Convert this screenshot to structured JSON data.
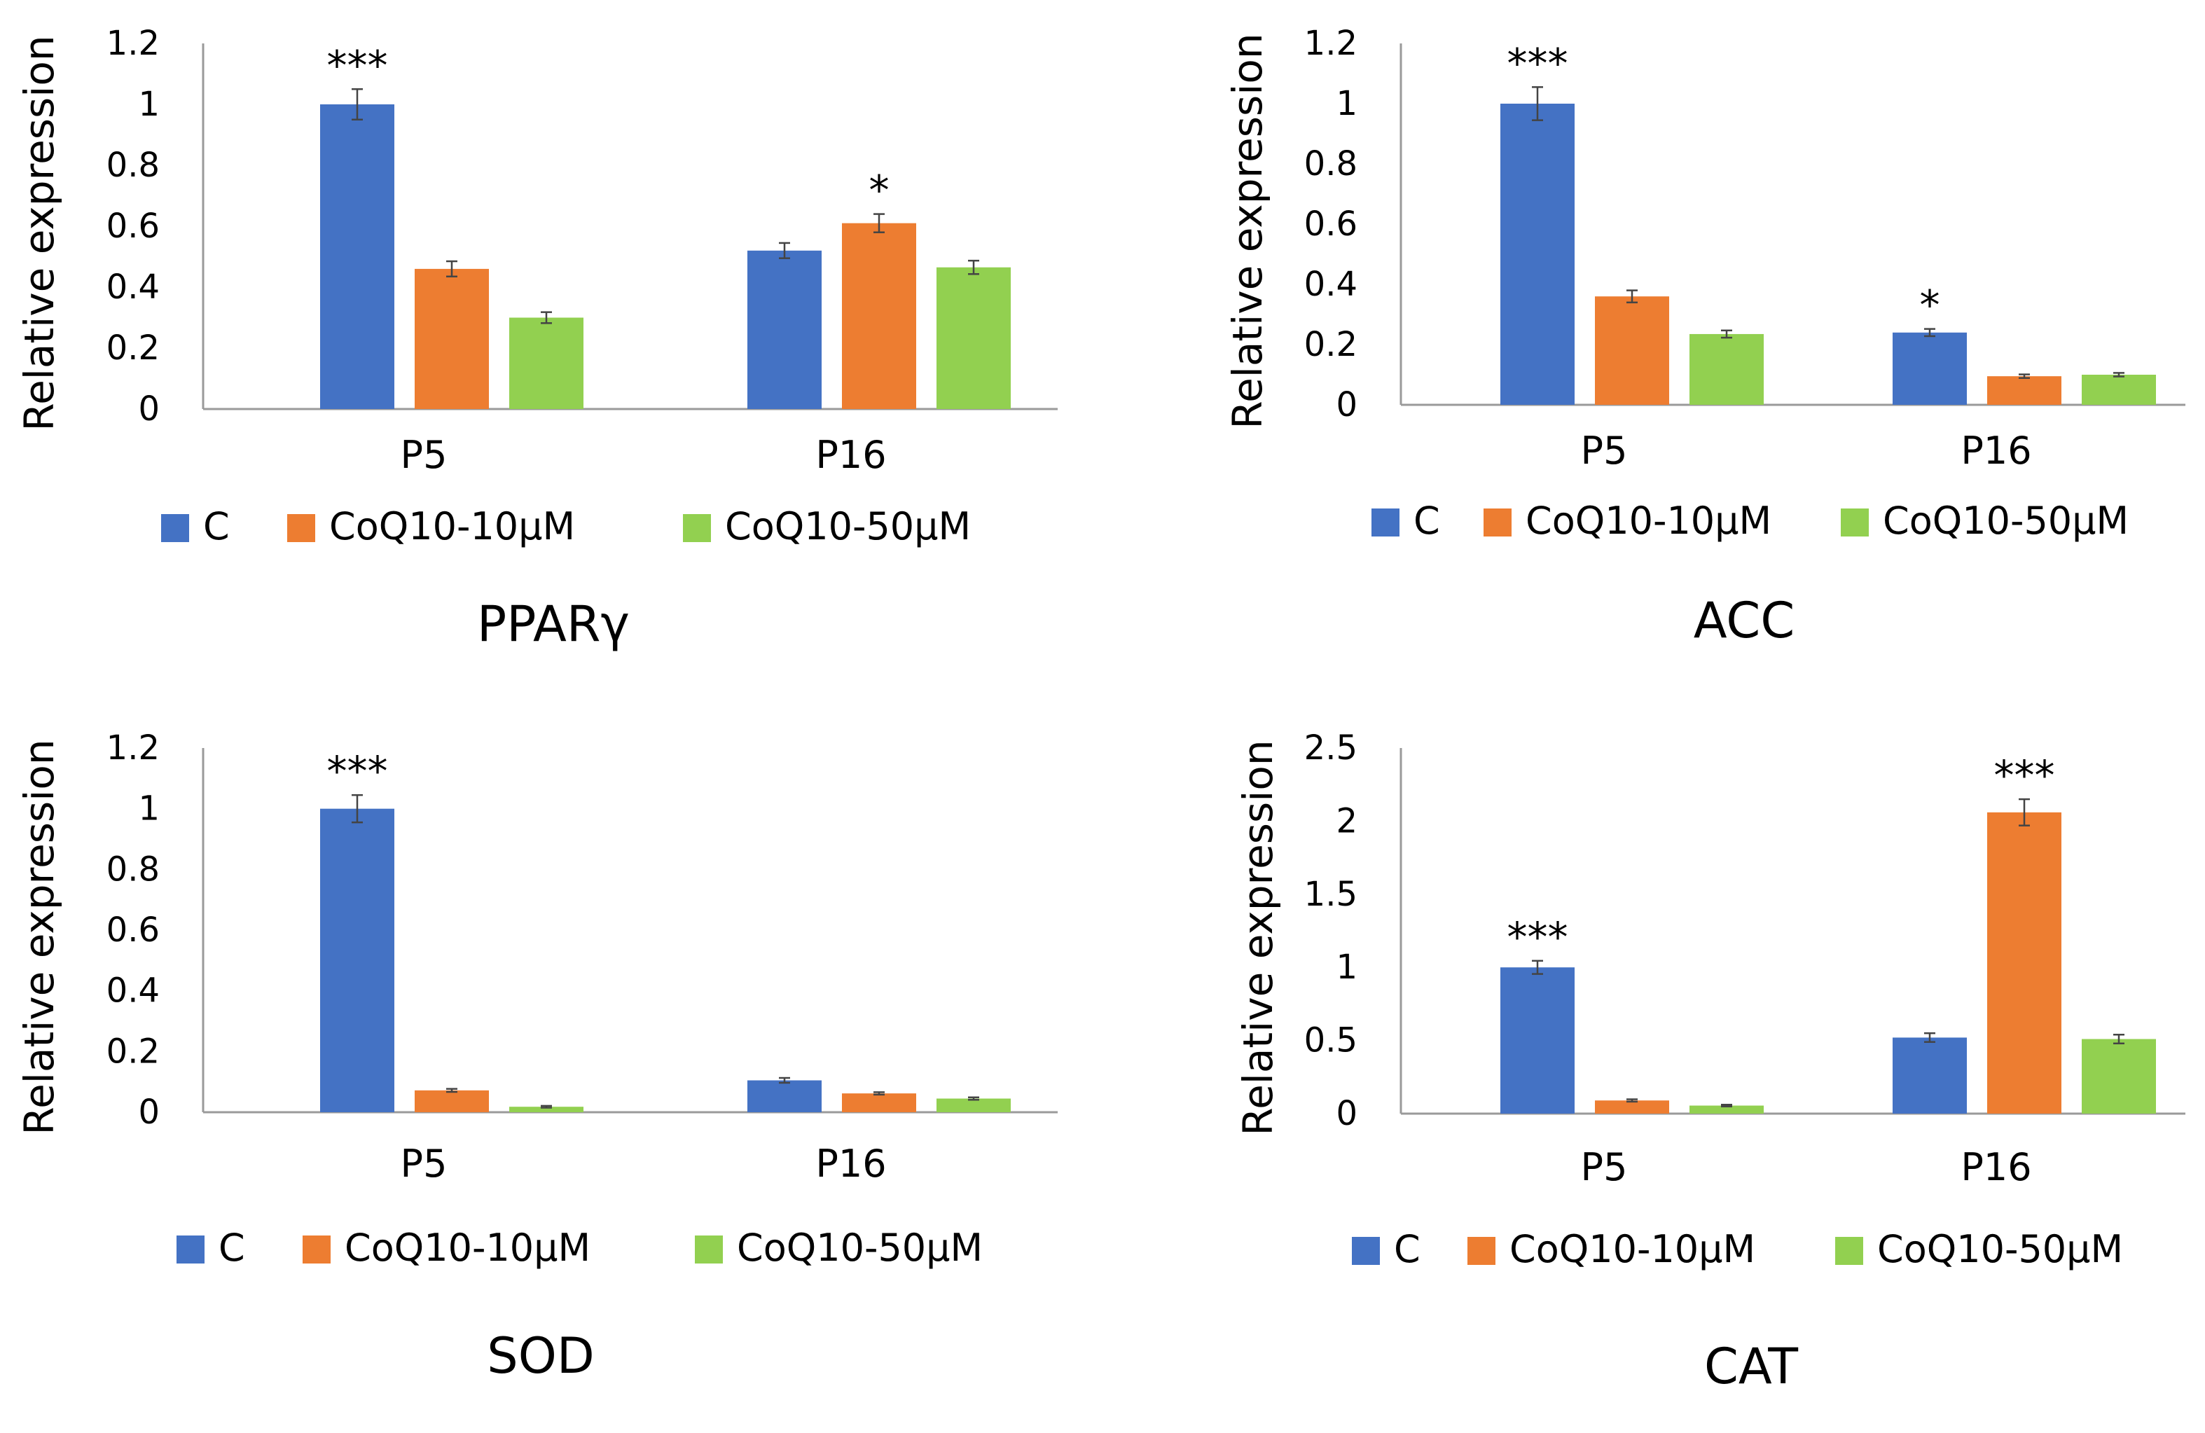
{
  "colors": {
    "C": "#4472C4",
    "CoQ10-10uM": "#ED7D31",
    "CoQ10-50uM": "#92D050",
    "axis": "#9a9a9a",
    "text": "#000000"
  },
  "chart_data": [
    {
      "type": "bar",
      "title": "PPARγ",
      "ylabel": "Relative expression",
      "xlabel": "",
      "categories": [
        "P5",
        "P16"
      ],
      "ylim": [
        0,
        1.2
      ],
      "yticks": [
        "0",
        "0.2",
        "0.4",
        "0.6",
        "0.8",
        "1",
        "1.2"
      ],
      "ytick_values": [
        0,
        0.2,
        0.4,
        0.6,
        0.8,
        1,
        1.2
      ],
      "legend_position": "bottom",
      "series": [
        {
          "name": "C",
          "values": [
            1.0,
            0.52
          ],
          "errors": [
            0.05,
            0.025
          ]
        },
        {
          "name": "CoQ10-10μM",
          "values": [
            0.46,
            0.61
          ],
          "errors": [
            0.025,
            0.03
          ]
        },
        {
          "name": "CoQ10-50μM",
          "values": [
            0.3,
            0.465
          ],
          "errors": [
            0.018,
            0.022
          ]
        }
      ],
      "annotations": [
        {
          "series": 0,
          "category": 0,
          "text": "***"
        },
        {
          "series": 1,
          "category": 1,
          "text": "*"
        }
      ]
    },
    {
      "type": "bar",
      "title": "ACC",
      "ylabel": "Relative expression",
      "xlabel": "",
      "categories": [
        "P5",
        "P16"
      ],
      "ylim": [
        0,
        1.2
      ],
      "yticks": [
        "0",
        "0.2",
        "0.4",
        "0.6",
        "0.8",
        "1",
        "1.2"
      ],
      "ytick_values": [
        0,
        0.2,
        0.4,
        0.6,
        0.8,
        1,
        1.2
      ],
      "legend_position": "bottom",
      "series": [
        {
          "name": "C",
          "values": [
            1.0,
            0.24
          ],
          "errors": [
            0.055,
            0.012
          ]
        },
        {
          "name": "CoQ10-10μM",
          "values": [
            0.36,
            0.095
          ],
          "errors": [
            0.02,
            0.006
          ]
        },
        {
          "name": "CoQ10-50μM",
          "values": [
            0.235,
            0.1
          ],
          "errors": [
            0.012,
            0.006
          ]
        }
      ],
      "annotations": [
        {
          "series": 0,
          "category": 0,
          "text": "***"
        },
        {
          "series": 0,
          "category": 1,
          "text": "*"
        }
      ]
    },
    {
      "type": "bar",
      "title": "SOD",
      "ylabel": "Relative expression",
      "xlabel": "",
      "categories": [
        "P5",
        "P16"
      ],
      "ylim": [
        0,
        1.2
      ],
      "yticks": [
        "0",
        "0.2",
        "0.4",
        "0.6",
        "0.8",
        "1",
        "1.2"
      ],
      "ytick_values": [
        0,
        0.2,
        0.4,
        0.6,
        0.8,
        1,
        1.2
      ],
      "legend_position": "bottom",
      "series": [
        {
          "name": "C",
          "values": [
            1.0,
            0.105
          ],
          "errors": [
            0.045,
            0.008
          ]
        },
        {
          "name": "CoQ10-10μM",
          "values": [
            0.072,
            0.062
          ],
          "errors": [
            0.005,
            0.004
          ]
        },
        {
          "name": "CoQ10-50μM",
          "values": [
            0.018,
            0.045
          ],
          "errors": [
            0.003,
            0.004
          ]
        }
      ],
      "annotations": [
        {
          "series": 0,
          "category": 0,
          "text": "***"
        }
      ]
    },
    {
      "type": "bar",
      "title": "CAT",
      "ylabel": "Relative expression",
      "xlabel": "",
      "categories": [
        "P5",
        "P16"
      ],
      "ylim": [
        0,
        2.5
      ],
      "yticks": [
        "0",
        "0.5",
        "1",
        "1.5",
        "2",
        "2.5"
      ],
      "ytick_values": [
        0,
        0.5,
        1,
        1.5,
        2,
        2.5
      ],
      "legend_position": "bottom",
      "series": [
        {
          "name": "C",
          "values": [
            1.0,
            0.52
          ],
          "errors": [
            0.045,
            0.03
          ]
        },
        {
          "name": "CoQ10-10μM",
          "values": [
            0.09,
            2.06
          ],
          "errors": [
            0.008,
            0.09
          ]
        },
        {
          "name": "CoQ10-50μM",
          "values": [
            0.055,
            0.51
          ],
          "errors": [
            0.006,
            0.03
          ]
        }
      ],
      "annotations": [
        {
          "series": 0,
          "category": 0,
          "text": "***"
        },
        {
          "series": 1,
          "category": 1,
          "text": "***"
        }
      ]
    }
  ]
}
